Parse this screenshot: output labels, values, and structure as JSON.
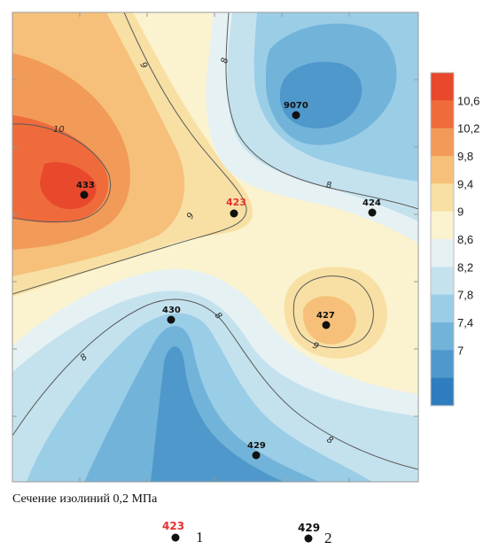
{
  "map": {
    "wells": [
      {
        "id": "433",
        "color": "#111111"
      },
      {
        "id": "423",
        "color": "#e53030"
      },
      {
        "id": "9070",
        "color": "#111111"
      },
      {
        "id": "424",
        "color": "#111111"
      },
      {
        "id": "430",
        "color": "#111111"
      },
      {
        "id": "427",
        "color": "#111111"
      },
      {
        "id": "429",
        "color": "#111111"
      }
    ],
    "contour_labels": [
      "10",
      "9",
      "8",
      "9",
      "8",
      "8",
      "9",
      "8",
      "8"
    ]
  },
  "scale": {
    "labels": [
      "10,6",
      "10,2",
      "9,8",
      "9,4",
      "9",
      "8,6",
      "8,2",
      "7,8",
      "7,4",
      "7"
    ],
    "colors": [
      "#e8482c",
      "#ef6b3c",
      "#f29a58",
      "#f6c07a",
      "#f8e0a4",
      "#fbf3cf",
      "#e6f1f3",
      "#c4e2ee",
      "#9acde6",
      "#72b3da",
      "#4f98cc",
      "#2f7cbe"
    ]
  },
  "caption": "Сечение изолиний 0,2 МПа",
  "legend": [
    {
      "well": "423",
      "number": "1",
      "color": "#e53030"
    },
    {
      "well": "429",
      "number": "2",
      "color": "#111111"
    }
  ]
}
